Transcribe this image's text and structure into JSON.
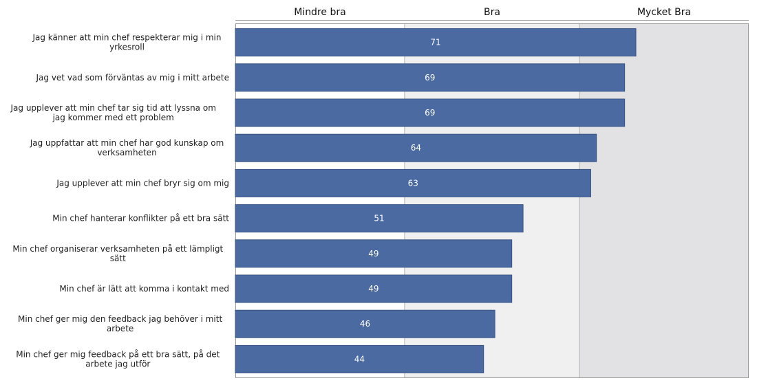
{
  "chart_data": {
    "type": "bar",
    "orientation": "horizontal",
    "bands": [
      {
        "label": "Mindre bra",
        "from": 0,
        "to": 30,
        "color": "#ffffff"
      },
      {
        "label": "Bra",
        "from": 30,
        "to": 61,
        "color": "#f0f0f0"
      },
      {
        "label": "Mycket Bra",
        "from": 61,
        "to": 91,
        "color": "#e2e2e4"
      }
    ],
    "xlim": [
      0,
      91
    ],
    "categories": [
      "Jag känner att min chef respekterar mig i min yrkesroll",
      "Jag vet vad som förväntas av mig i mitt arbete",
      "Jag upplever att min chef tar sig tid att lyssna om jag kommer med ett problem",
      "Jag uppfattar att min chef har god kunskap om verksamheten",
      "Jag upplever att min chef bryr sig om mig",
      "Min chef hanterar konflikter på ett bra sätt",
      "Min chef organiserar verksamheten på ett lämpligt sätt",
      "Min chef är lätt att komma i kontakt med",
      "Min chef ger mig den feedback jag behöver i mitt arbete",
      "Min chef ger mig feedback på ett bra sätt, på det arbete jag utför"
    ],
    "values": [
      71,
      69,
      69,
      64,
      63,
      51,
      49,
      49,
      46,
      44
    ],
    "bar_color": "#4a6aa1"
  }
}
